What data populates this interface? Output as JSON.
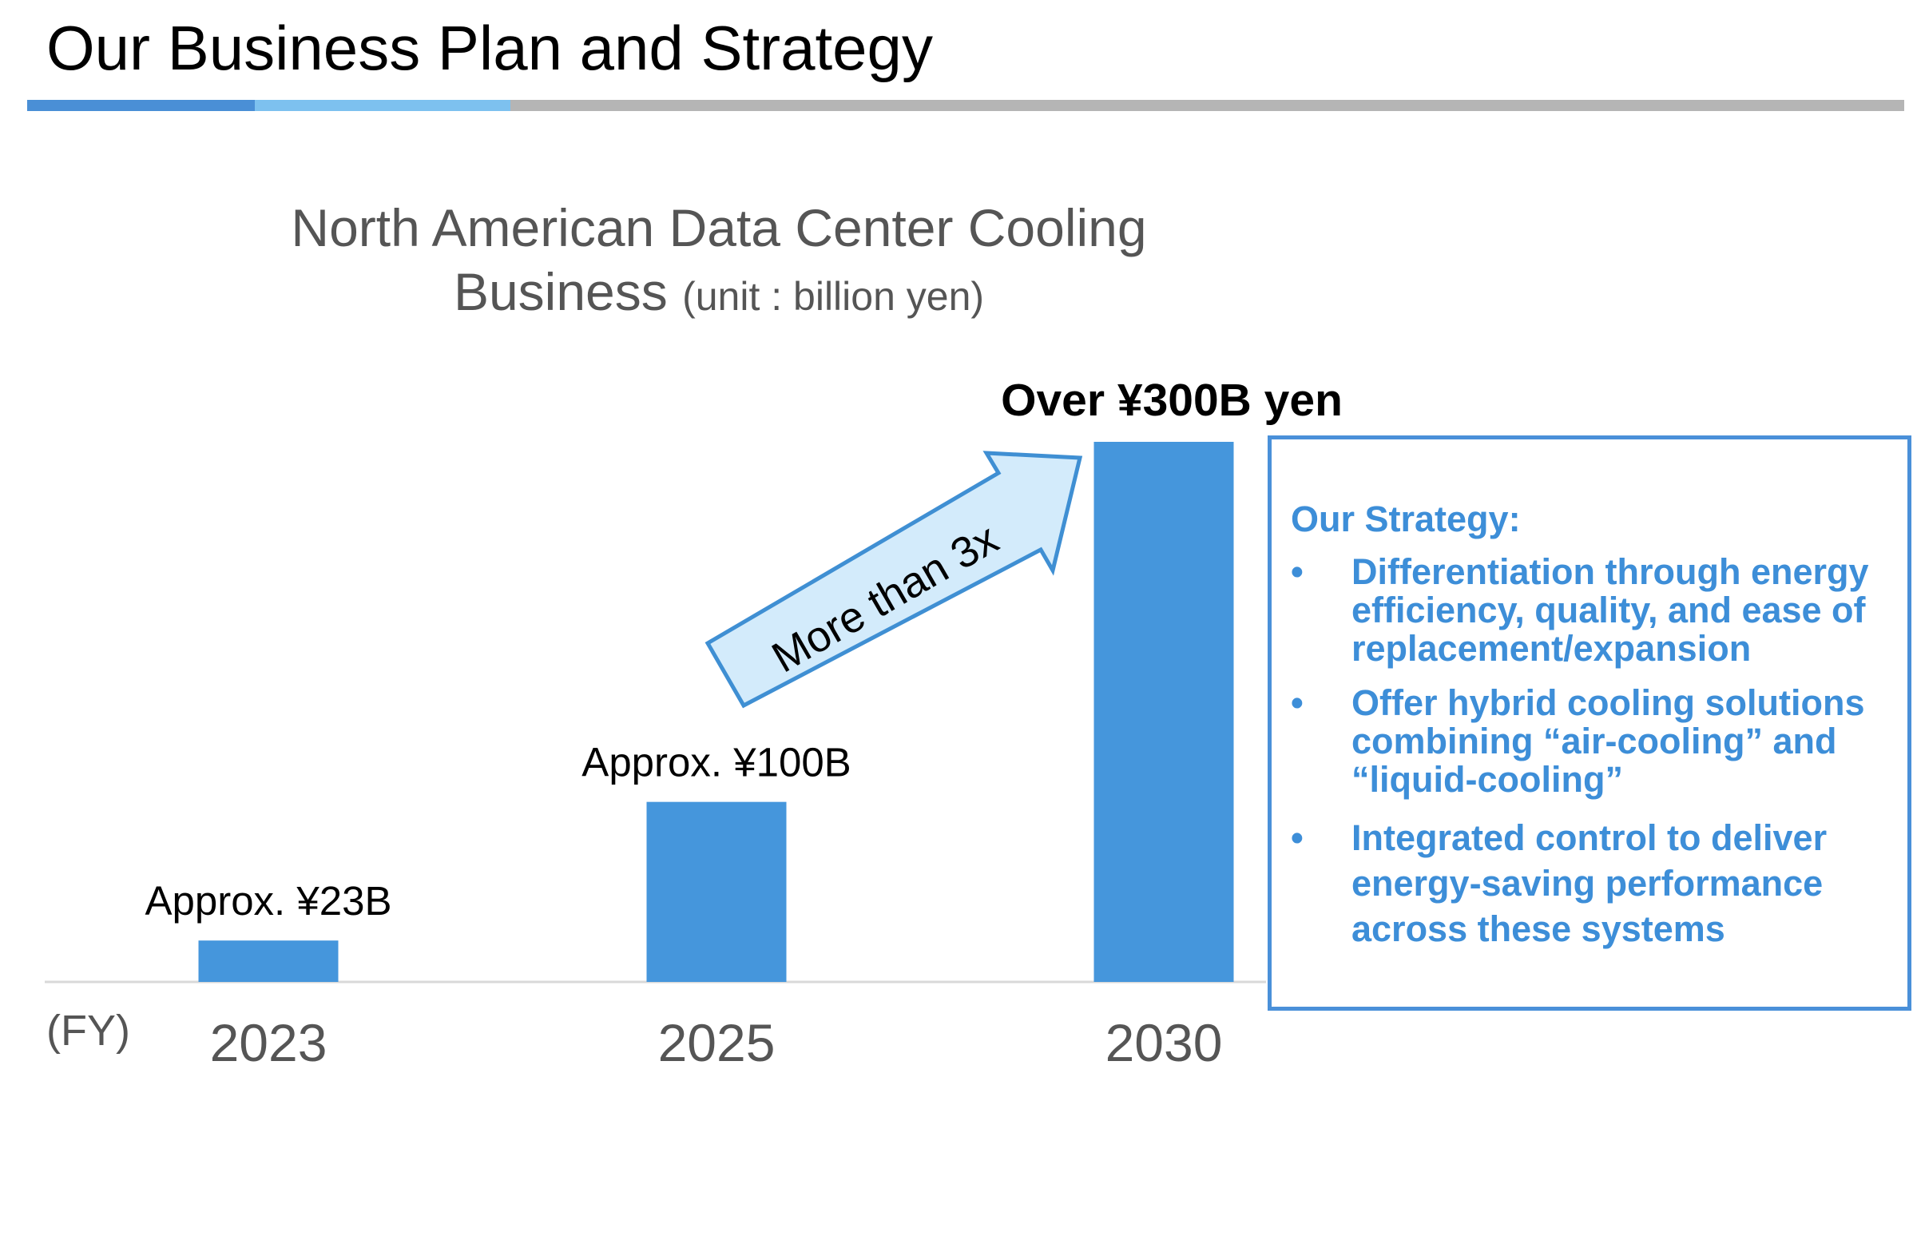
{
  "slide": {
    "title": "Our Business Plan and Strategy"
  },
  "colors": {
    "bar": "#4596dc",
    "accent_dark": "#4a8fd6",
    "accent_light": "#7dc1ef",
    "rule_gray": "#b5b5b5",
    "arrow_fill": "#d3ebfb",
    "arrow_stroke": "#3f8fd3",
    "strategy_text": "#3d8ed8",
    "axis_text": "#555555"
  },
  "chart_data": {
    "type": "bar",
    "title": "North American Data Center Cooling Business",
    "unit_label": "(unit : billion yen)",
    "xlabel": "(FY)",
    "ylabel": "",
    "categories": [
      "2023",
      "2025",
      "2030"
    ],
    "values": [
      23,
      100,
      300
    ],
    "data_labels": [
      "Approx. ¥23B",
      "Approx. ¥100B",
      "Over ¥300B yen"
    ],
    "ylim": [
      0,
      300
    ],
    "grid": false,
    "annotation": {
      "text": "More than 3x",
      "shape": "arrow",
      "from": "2025",
      "to": "2030"
    }
  },
  "strategy": {
    "heading": "Our Strategy:",
    "bullet_symbol": "•",
    "items": [
      "Differentiation through energy efficiency, quality, and ease of replacement/expansion",
      "Offer hybrid cooling solutions combining “air-cooling” and “liquid-cooling”",
      "Integrated control to deliver energy-saving performance across these systems"
    ]
  }
}
